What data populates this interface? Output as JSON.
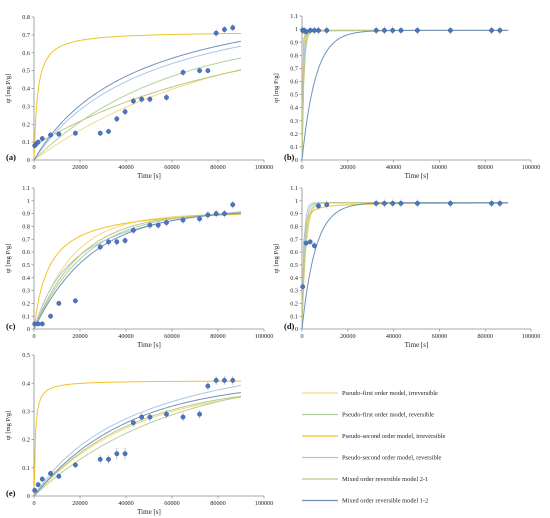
{
  "colors": {
    "pfo_irrev": "#f4d889",
    "pfo_rev": "#b2d29b",
    "pso_irrev": "#f2c22b",
    "pso_rev": "#a9c6e6",
    "mix21": "#bfc67e",
    "mix12": "#7191bb",
    "marker": "#4a74c4",
    "marker_edge": "#2f4f8f",
    "axis": "#8c8c8c",
    "errorbar": "#9aa7b8"
  },
  "legend": [
    {
      "key": "pfo_irrev",
      "label": "Pseudo-first order model, irreversible"
    },
    {
      "key": "pfo_rev",
      "label": "Pseudo-first order model, reversible"
    },
    {
      "key": "pso_irrev",
      "label": "Pseudo-second order model, irreversible"
    },
    {
      "key": "pso_rev",
      "label": "Pseudo-second order model, reversible"
    },
    {
      "key": "mix21",
      "label": "Mixed order reversible model 2-1"
    },
    {
      "key": "mix12",
      "label": "Mixed order reversible model  1-2"
    }
  ],
  "chart_data": [
    {
      "type": "scatter",
      "panel_label": "(a)",
      "xlabel": "Time [s]",
      "ylabel": "qt [mg P/g]",
      "xlim": [
        0,
        100000
      ],
      "ylim": [
        0,
        0.8
      ],
      "xticks": [
        0,
        20000,
        40000,
        60000,
        80000,
        100000
      ],
      "xtick_labels": [
        "0",
        "20000",
        "40000",
        "60000",
        "80000",
        "100000"
      ],
      "yticks": [
        0,
        0.1,
        0.2,
        0.3,
        0.4,
        0.5,
        0.6,
        0.7,
        0.8
      ],
      "ytick_labels": [
        "0",
        "0.1",
        "0.2",
        "0.3",
        "0.4",
        "0.5",
        "0.6",
        "0.7",
        "0.8"
      ],
      "points": {
        "x": [
          300,
          1000,
          1800,
          3600,
          7200,
          10800,
          18000,
          28800,
          32400,
          36000,
          39600,
          43200,
          46800,
          50400,
          57600,
          64800,
          72000,
          75600,
          79200,
          82800,
          86400
        ],
        "y": [
          0.08,
          0.09,
          0.1,
          0.12,
          0.14,
          0.145,
          0.15,
          0.15,
          0.16,
          0.23,
          0.27,
          0.33,
          0.34,
          0.34,
          0.35,
          0.49,
          0.5,
          0.5,
          0.71,
          0.73,
          0.74
        ],
        "err": [
          0.015,
          0.015,
          0.015,
          0.015,
          0.015,
          0.015,
          0.015,
          0.015,
          0.015,
          0.02,
          0.02,
          0.02,
          0.02,
          0.02,
          0.02,
          0.02,
          0.015,
          0.015,
          0.02,
          0.02,
          0.02
        ]
      },
      "series": [
        {
          "key": "pfo_irrev",
          "model": "pfo",
          "qe": 0.75,
          "k": 1.25e-05
        },
        {
          "key": "pfo_rev",
          "model": "pfo",
          "qe": 0.72,
          "k": 1.75e-05
        },
        {
          "key": "pso_irrev",
          "model": "pso",
          "qe": 0.72,
          "k": 0.00091
        },
        {
          "key": "pso_rev",
          "model": "pso",
          "qe": 1.0,
          "k": 1.95e-05
        },
        {
          "key": "mix21",
          "model": "pfo",
          "qe": 0.72,
          "k": 1.2e-05,
          "q0": 0.08
        },
        {
          "key": "mix12",
          "model": "pso",
          "qe": 1.0,
          "k": 2.2e-05
        }
      ]
    },
    {
      "type": "scatter",
      "panel_label": "(b)",
      "xlabel": "Time [s]",
      "ylabel": "qt [mg P/g]",
      "xlim": [
        0,
        100000
      ],
      "ylim": [
        0,
        1.1
      ],
      "xticks": [
        0,
        20000,
        40000,
        60000,
        80000,
        100000
      ],
      "xtick_labels": [
        "0",
        "20000",
        "40000",
        "60000",
        "80000",
        "100000"
      ],
      "yticks": [
        0,
        0.1,
        0.2,
        0.3,
        0.4,
        0.5,
        0.6,
        0.7,
        0.8,
        0.9,
        1,
        1.1
      ],
      "ytick_labels": [
        "0",
        "0.1",
        "0.2",
        "0.3",
        "0.4",
        "0.5",
        "0.6",
        "0.7",
        "0.8",
        "0.9",
        "1",
        "1.1"
      ],
      "points": {
        "x": [
          300,
          900,
          1800,
          3600,
          5400,
          7200,
          10800,
          32400,
          36000,
          39600,
          43200,
          50400,
          64800,
          82800,
          86400
        ],
        "y": [
          0.99,
          0.99,
          0.98,
          0.99,
          0.99,
          0.99,
          0.99,
          0.99,
          0.99,
          0.99,
          0.99,
          0.99,
          0.99,
          0.99,
          0.99
        ],
        "err": [
          0.03,
          0.03,
          0.03,
          0.03,
          0.03,
          0.03,
          0.03,
          0.03,
          0.03,
          0.03,
          0.03,
          0.03,
          0.03,
          0.03,
          0.03
        ]
      },
      "series": [
        {
          "key": "pfo_irrev",
          "model": "pfo",
          "qe": 0.99,
          "k": 0.003
        },
        {
          "key": "pfo_rev",
          "model": "pfo",
          "qe": 0.99,
          "k": 0.0015
        },
        {
          "key": "pso_irrev",
          "model": "pso",
          "qe": 0.99,
          "k": 0.02
        },
        {
          "key": "pso_rev",
          "model": "pfo",
          "qe": 0.99,
          "k": 0.002
        },
        {
          "key": "mix21",
          "model": "pfo",
          "qe": 0.99,
          "k": 0.0012
        },
        {
          "key": "mix12",
          "model": "pfo",
          "qe": 0.99,
          "k": 0.00017
        }
      ]
    },
    {
      "type": "scatter",
      "panel_label": "(c)",
      "xlabel": "Time [s]",
      "ylabel": "qt [mg P/g]",
      "xlim": [
        0,
        100000
      ],
      "ylim": [
        0,
        1.1
      ],
      "xticks": [
        0,
        20000,
        40000,
        60000,
        80000,
        100000
      ],
      "xtick_labels": [
        "0",
        "20000",
        "40000",
        "60000",
        "80000",
        "100000"
      ],
      "yticks": [
        0,
        0.1,
        0.2,
        0.3,
        0.4,
        0.5,
        0.6,
        0.7,
        0.8,
        0.9,
        1,
        1.1
      ],
      "ytick_labels": [
        "0",
        "0.1",
        "0.2",
        "0.3",
        "0.4",
        "0.5",
        "0.6",
        "0.7",
        "0.8",
        "0.9",
        "1",
        "1.1"
      ],
      "points": {
        "x": [
          300,
          1800,
          3600,
          7200,
          10800,
          18000,
          28800,
          32400,
          36000,
          39600,
          43200,
          50400,
          54000,
          57600,
          64800,
          72000,
          75600,
          79200,
          82800,
          86400
        ],
        "y": [
          0.04,
          0.04,
          0.04,
          0.1,
          0.2,
          0.22,
          0.64,
          0.68,
          0.68,
          0.69,
          0.77,
          0.81,
          0.81,
          0.83,
          0.85,
          0.86,
          0.89,
          0.9,
          0.9,
          0.97
        ],
        "err": [
          0.02,
          0.02,
          0.02,
          0.02,
          0.02,
          0.02,
          0.03,
          0.03,
          0.03,
          0.03,
          0.03,
          0.03,
          0.03,
          0.03,
          0.03,
          0.03,
          0.03,
          0.03,
          0.03,
          0.03
        ]
      },
      "series": [
        {
          "key": "pfo_irrev",
          "model": "pfo",
          "qe": 0.9,
          "k": 6e-05
        },
        {
          "key": "pfo_rev",
          "model": "pfo",
          "qe": 0.92,
          "k": 4.5e-05
        },
        {
          "key": "pso_irrev",
          "model": "pso",
          "qe": 0.96,
          "k": 0.00016
        },
        {
          "key": "pso_rev",
          "model": "pso",
          "qe": 1.1,
          "k": 5e-05
        },
        {
          "key": "mix21",
          "model": "pfo",
          "qe": 0.91,
          "k": 5e-05
        },
        {
          "key": "mix12",
          "model": "pfo",
          "qe": 0.93,
          "k": 4e-05
        }
      ]
    },
    {
      "type": "scatter",
      "panel_label": "(d)",
      "xlabel": "Time [s]",
      "ylabel": "qt [mg P/g]",
      "xlim": [
        0,
        100000
      ],
      "ylim": [
        0,
        1.1
      ],
      "xticks": [
        0,
        20000,
        40000,
        60000,
        80000,
        100000
      ],
      "xtick_labels": [
        "0",
        "20000",
        "40000",
        "60000",
        "80000",
        "100000"
      ],
      "yticks": [
        0,
        0.1,
        0.2,
        0.3,
        0.4,
        0.5,
        0.6,
        0.7,
        0.8,
        0.9,
        1,
        1.1
      ],
      "ytick_labels": [
        "0",
        "0.1",
        "0.2",
        "0.3",
        "0.4",
        "0.5",
        "0.6",
        "0.7",
        "0.8",
        "0.9",
        "1",
        "1.1"
      ],
      "points": {
        "x": [
          300,
          1800,
          3600,
          5400,
          7200,
          10800,
          32400,
          36000,
          39600,
          43200,
          50400,
          64800,
          82800,
          86400
        ],
        "y": [
          0.33,
          0.67,
          0.68,
          0.65,
          0.96,
          0.97,
          0.98,
          0.98,
          0.98,
          0.98,
          0.98,
          0.98,
          0.98,
          0.98
        ],
        "err": [
          0.02,
          0.02,
          0.02,
          0.03,
          0.03,
          0.03,
          0.03,
          0.03,
          0.03,
          0.03,
          0.03,
          0.03,
          0.03,
          0.03
        ]
      },
      "series": [
        {
          "key": "pfo_irrev",
          "model": "pfo",
          "qe": 0.985,
          "k": 0.0006
        },
        {
          "key": "pfo_rev",
          "model": "pfo",
          "qe": 0.985,
          "k": 0.0009
        },
        {
          "key": "pso_irrev",
          "model": "pso",
          "qe": 0.985,
          "k": 0.003
        },
        {
          "key": "pso_rev",
          "model": "pfo",
          "qe": 0.985,
          "k": 0.0012
        },
        {
          "key": "mix21",
          "model": "pfo",
          "qe": 0.985,
          "k": 0.0007
        },
        {
          "key": "mix12",
          "model": "pfo",
          "qe": 0.985,
          "k": 0.00017
        }
      ]
    },
    {
      "type": "scatter",
      "panel_label": "(e)",
      "xlabel": "Time [s]",
      "ylabel": "qt [mg P/g]",
      "xlim": [
        0,
        100000
      ],
      "ylim": [
        0,
        0.5
      ],
      "xticks": [
        0,
        20000,
        40000,
        60000,
        80000,
        100000
      ],
      "xtick_labels": [
        "0",
        "20000",
        "40000",
        "60000",
        "80000",
        "100000"
      ],
      "yticks": [
        0,
        0.1,
        0.2,
        0.3,
        0.4,
        0.5
      ],
      "ytick_labels": [
        "0",
        "0.1",
        "0.2",
        "0.3",
        "0.4",
        "0.5"
      ],
      "points": {
        "x": [
          300,
          1800,
          3600,
          7200,
          10800,
          18000,
          28800,
          32400,
          36000,
          39600,
          43200,
          46800,
          50400,
          57600,
          64800,
          72000,
          75600,
          79200,
          82800,
          86400
        ],
        "y": [
          0.02,
          0.04,
          0.06,
          0.08,
          0.07,
          0.11,
          0.13,
          0.13,
          0.15,
          0.15,
          0.26,
          0.28,
          0.28,
          0.29,
          0.28,
          0.29,
          0.39,
          0.41,
          0.41,
          0.41
        ],
        "err": [
          0.01,
          0.01,
          0.01,
          0.01,
          0.01,
          0.01,
          0.015,
          0.015,
          0.02,
          0.02,
          0.015,
          0.015,
          0.015,
          0.015,
          0.015,
          0.015,
          0.015,
          0.015,
          0.015,
          0.015
        ]
      },
      "series": [
        {
          "key": "pfo_irrev",
          "model": "pfo",
          "qe": 0.4,
          "k": 2.3e-05
        },
        {
          "key": "pfo_rev",
          "model": "pfo",
          "qe": 0.45,
          "k": 1.7e-05
        },
        {
          "key": "pso_irrev",
          "model": "pso",
          "qe": 0.41,
          "k": 0.0045
        },
        {
          "key": "pso_rev",
          "model": "pso",
          "qe": 0.6,
          "k": 3.5e-05
        },
        {
          "key": "mix21",
          "model": "pfo",
          "qe": 0.4,
          "k": 2.4e-05
        },
        {
          "key": "mix12",
          "model": "pfo",
          "qe": 0.41,
          "k": 2.5e-05
        }
      ]
    }
  ]
}
